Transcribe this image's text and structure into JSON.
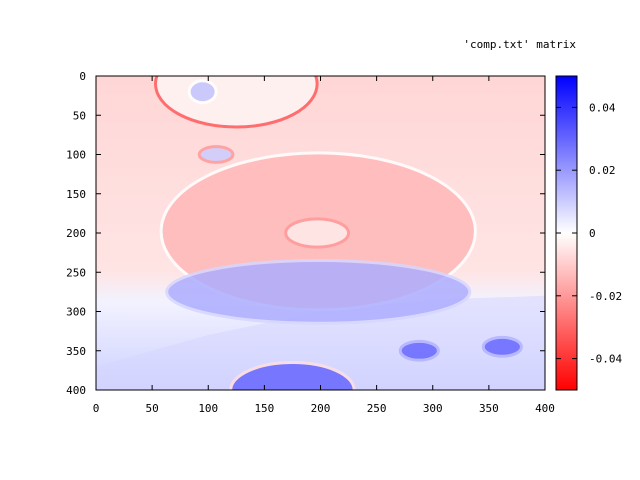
{
  "chart_data": {
    "type": "heatmap",
    "title": "",
    "legend_label": "'comp.txt' matrix",
    "xlabel": "",
    "ylabel": "",
    "x_ticks": [
      0,
      50,
      100,
      150,
      200,
      250,
      300,
      350,
      400
    ],
    "y_ticks": [
      0,
      50,
      100,
      150,
      200,
      250,
      300,
      350,
      400
    ],
    "xlim": [
      0,
      400
    ],
    "ylim": [
      0,
      400
    ],
    "y_reversed": true,
    "colorbar": {
      "range": [
        -0.05,
        0.05
      ],
      "ticks": [
        0.04,
        0.02,
        0,
        -0.02,
        -0.04
      ],
      "tick_labels": [
        "0.04",
        "0.02",
        "0",
        "-0.02",
        "-0.04"
      ],
      "colors": {
        "low": "#ff0000",
        "mid": "#ffffff",
        "high": "#0000ff"
      }
    },
    "background_field": {
      "upper_region_value": -0.012,
      "lower_region_value": 0.008,
      "boundary_y": [
        [
          0,
          370
        ],
        [
          100,
          330
        ],
        [
          200,
          300
        ],
        [
          300,
          285
        ],
        [
          400,
          280
        ]
      ]
    },
    "features": [
      {
        "shape": "ellipse",
        "cx": 125,
        "cy": 10,
        "rx": 72,
        "ry": 55,
        "inner_value": -0.002,
        "rim_value": -0.032
      },
      {
        "shape": "ellipse",
        "cx": 95,
        "cy": 20,
        "rx": 12,
        "ry": 14,
        "inner_value": 0.012,
        "rim_value": 0.0
      },
      {
        "shape": "ellipse",
        "cx": 107,
        "cy": 100,
        "rx": 15,
        "ry": 10,
        "inner_value": 0.01,
        "rim_value": -0.02
      },
      {
        "shape": "ellipse",
        "cx": 198,
        "cy": 198,
        "rx": 140,
        "ry": 100,
        "inner_value": -0.014,
        "rim_value": 0.0
      },
      {
        "shape": "ellipse",
        "cx": 197,
        "cy": 200,
        "rx": 28,
        "ry": 18,
        "inner_value": -0.004,
        "rim_value": -0.02
      },
      {
        "shape": "ellipse",
        "cx": 198,
        "cy": 275,
        "rx": 135,
        "ry": 40,
        "inner_value": 0.016,
        "rim_value": 0.008
      },
      {
        "shape": "ellipse",
        "cx": 288,
        "cy": 350,
        "rx": 17,
        "ry": 12,
        "inner_value": 0.03,
        "rim_value": 0.015
      },
      {
        "shape": "ellipse",
        "cx": 362,
        "cy": 345,
        "rx": 17,
        "ry": 12,
        "inner_value": 0.03,
        "rim_value": 0.015
      },
      {
        "shape": "ellipse",
        "cx": 175,
        "cy": 400,
        "rx": 55,
        "ry": 35,
        "inner_value": 0.03,
        "rim_value": -0.006
      }
    ]
  }
}
